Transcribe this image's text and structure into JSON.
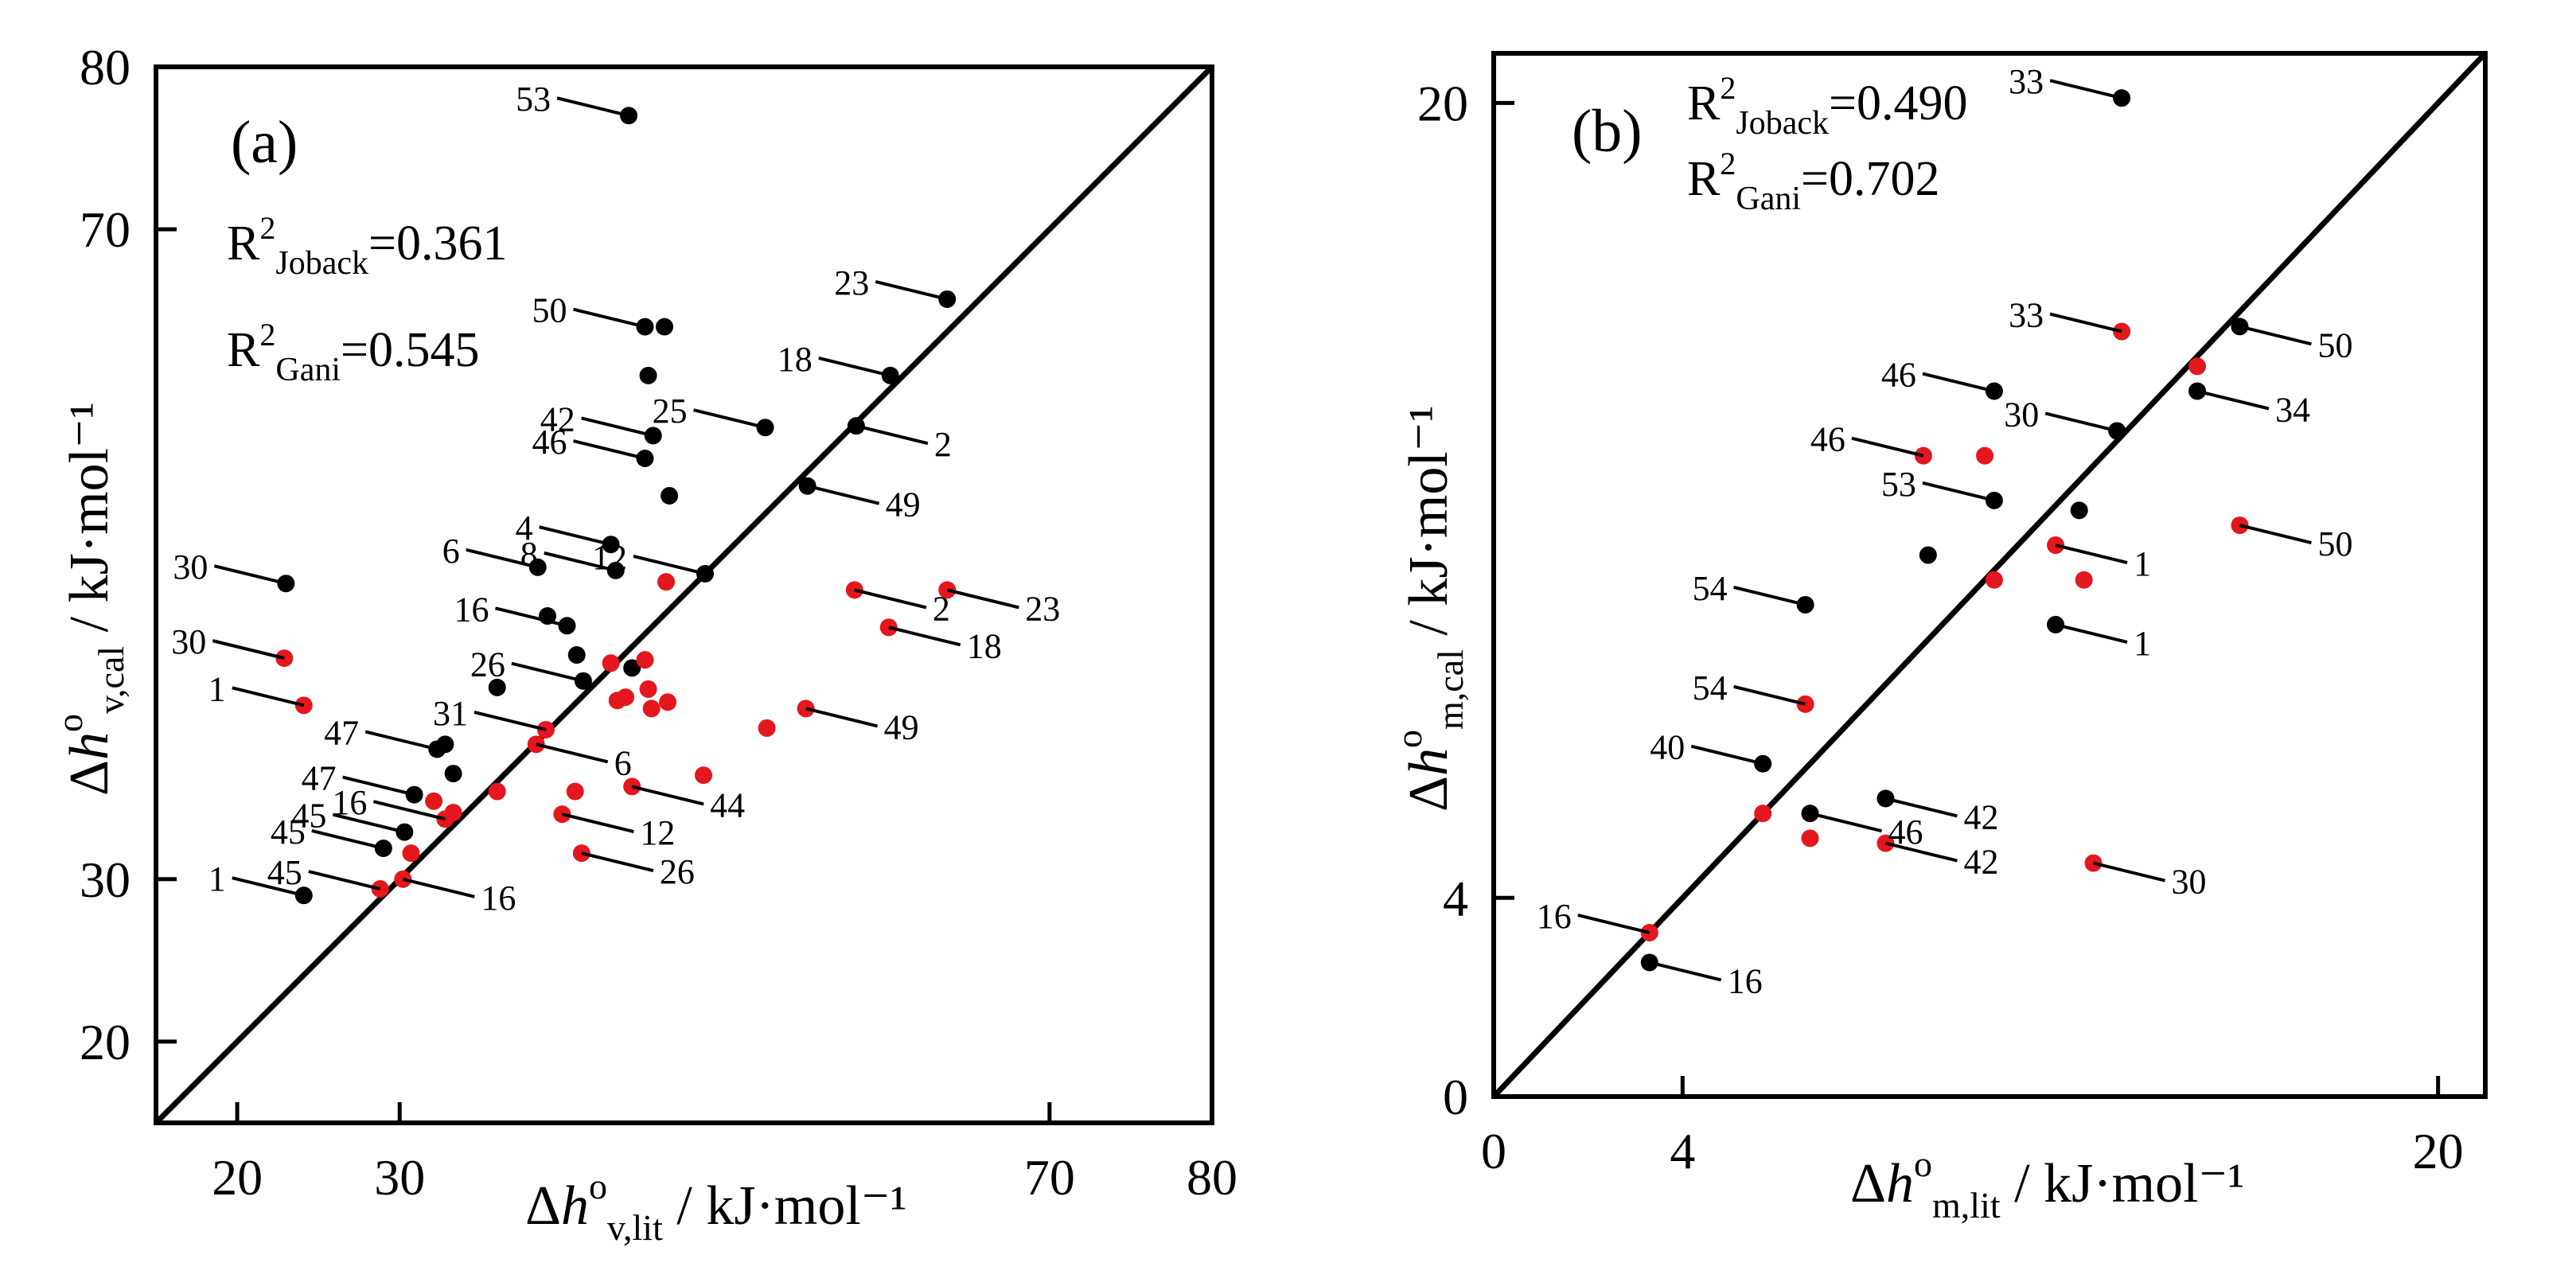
{
  "colors": {
    "series_joback": "#000000",
    "series_gani": "#e3171d",
    "frame": "#000000"
  },
  "chart_data": [
    {
      "type": "scatter",
      "panel_label": "(a)",
      "xlabel": {
        "delta": "Δ",
        "var": "h",
        "sup": "o",
        "sub": "v,lit",
        "unit": " / kJ·mol⁻¹"
      },
      "ylabel": {
        "delta": "Δ",
        "var": "h",
        "sup": "o",
        "sub": "v,cal",
        "unit": " / kJ·mol⁻¹"
      },
      "xlim": [
        15,
        80
      ],
      "ylim": [
        15,
        80
      ],
      "xticks": [
        20,
        30,
        70,
        80
      ],
      "yticks": [
        20,
        30,
        70,
        80
      ],
      "xtick_labels": [
        "20",
        "30",
        "70",
        "80"
      ],
      "ytick_labels": [
        "20",
        "30",
        "70",
        "80"
      ],
      "diagonal": true,
      "r2": [
        {
          "label": "R",
          "sup": "2",
          "sub": "Joback",
          "value": "=0.361"
        },
        {
          "label": "R",
          "sup": "2",
          "sub": "Gani",
          "value": "=0.545"
        }
      ],
      "series": [
        {
          "name": "Joback",
          "color": "#000000",
          "points": [
            {
              "x": 23.0,
              "y": 48.2,
              "label": "30"
            },
            {
              "x": 24.1,
              "y": 29.0,
              "label": "1"
            },
            {
              "x": 29.0,
              "y": 31.9,
              "label": "45"
            },
            {
              "x": 30.3,
              "y": 32.9,
              "label": "45"
            },
            {
              "x": 30.9,
              "y": 35.2,
              "label": "47"
            },
            {
              "x": 32.3,
              "y": 38.0,
              "label": "47"
            },
            {
              "x": 32.8,
              "y": 38.3,
              "label": ""
            },
            {
              "x": 33.3,
              "y": 36.5,
              "label": ""
            },
            {
              "x": 36.0,
              "y": 41.8,
              "label": ""
            },
            {
              "x": 38.5,
              "y": 49.2,
              "label": "6"
            },
            {
              "x": 39.1,
              "y": 46.2,
              "label": ""
            },
            {
              "x": 40.3,
              "y": 45.6,
              "label": "16"
            },
            {
              "x": 40.9,
              "y": 43.8,
              "label": ""
            },
            {
              "x": 41.3,
              "y": 42.2,
              "label": "26"
            },
            {
              "x": 43.0,
              "y": 50.6,
              "label": "4"
            },
            {
              "x": 43.3,
              "y": 49.0,
              "label": "8"
            },
            {
              "x": 44.3,
              "y": 43.0,
              "label": ""
            },
            {
              "x": 44.1,
              "y": 77.0,
              "label": "53"
            },
            {
              "x": 45.1,
              "y": 64.0,
              "label": "50"
            },
            {
              "x": 46.3,
              "y": 64.0,
              "label": ""
            },
            {
              "x": 45.3,
              "y": 61.0,
              "label": ""
            },
            {
              "x": 45.6,
              "y": 57.3,
              "label": "42"
            },
            {
              "x": 45.1,
              "y": 55.9,
              "label": "46"
            },
            {
              "x": 46.6,
              "y": 53.6,
              "label": ""
            },
            {
              "x": 48.8,
              "y": 48.8,
              "label": "12"
            },
            {
              "x": 52.5,
              "y": 57.8,
              "label": "25"
            },
            {
              "x": 55.1,
              "y": 54.2,
              "label": "49"
            },
            {
              "x": 58.1,
              "y": 57.9,
              "label": "2"
            },
            {
              "x": 60.2,
              "y": 61.0,
              "label": "18"
            },
            {
              "x": 63.7,
              "y": 65.7,
              "label": "23"
            }
          ]
        },
        {
          "name": "Gani",
          "color": "#e3171d",
          "points": [
            {
              "x": 22.9,
              "y": 43.6,
              "label": "30"
            },
            {
              "x": 24.1,
              "y": 40.7,
              "label": "1"
            },
            {
              "x": 28.8,
              "y": 29.4,
              "label": "45"
            },
            {
              "x": 30.2,
              "y": 30.0,
              "label": "16"
            },
            {
              "x": 30.7,
              "y": 31.6,
              "label": ""
            },
            {
              "x": 32.1,
              "y": 34.8,
              "label": ""
            },
            {
              "x": 32.8,
              "y": 33.7,
              "label": "16"
            },
            {
              "x": 33.3,
              "y": 34.1,
              "label": ""
            },
            {
              "x": 36.0,
              "y": 35.4,
              "label": ""
            },
            {
              "x": 38.4,
              "y": 38.3,
              "label": "6"
            },
            {
              "x": 39.0,
              "y": 39.2,
              "label": "31"
            },
            {
              "x": 40.0,
              "y": 34.0,
              "label": "12"
            },
            {
              "x": 40.8,
              "y": 35.4,
              "label": ""
            },
            {
              "x": 41.2,
              "y": 31.6,
              "label": "26"
            },
            {
              "x": 43.0,
              "y": 43.3,
              "label": ""
            },
            {
              "x": 43.4,
              "y": 41.0,
              "label": ""
            },
            {
              "x": 43.9,
              "y": 41.2,
              "label": ""
            },
            {
              "x": 44.3,
              "y": 35.7,
              "label": "44"
            },
            {
              "x": 45.1,
              "y": 43.5,
              "label": ""
            },
            {
              "x": 45.3,
              "y": 41.7,
              "label": ""
            },
            {
              "x": 45.5,
              "y": 40.5,
              "label": ""
            },
            {
              "x": 46.5,
              "y": 40.9,
              "label": ""
            },
            {
              "x": 46.4,
              "y": 48.3,
              "label": ""
            },
            {
              "x": 48.7,
              "y": 36.4,
              "label": ""
            },
            {
              "x": 52.6,
              "y": 39.3,
              "label": ""
            },
            {
              "x": 55.0,
              "y": 40.5,
              "label": "49"
            },
            {
              "x": 58.0,
              "y": 47.8,
              "label": "2"
            },
            {
              "x": 60.1,
              "y": 45.5,
              "label": "18"
            },
            {
              "x": 63.7,
              "y": 47.8,
              "label": "23"
            }
          ]
        }
      ]
    },
    {
      "type": "scatter",
      "panel_label": "(b)",
      "xlabel": {
        "delta": "Δ",
        "var": "h",
        "sup": "o",
        "sub": "m,lit",
        "unit": " / kJ·mol⁻¹"
      },
      "ylabel": {
        "delta": "Δ",
        "var": "h",
        "sup": "o",
        "sub": "m,cal",
        "unit": " / kJ·mol⁻¹"
      },
      "xlim": [
        0,
        21
      ],
      "ylim": [
        0,
        21
      ],
      "xticks": [
        0,
        4,
        20
      ],
      "yticks": [
        0,
        4,
        20
      ],
      "xtick_labels": [
        "0",
        "4",
        "20"
      ],
      "ytick_labels": [
        "0",
        "4",
        "20"
      ],
      "diagonal": true,
      "r2": [
        {
          "label": "R",
          "sup": "2",
          "sub": "Joback",
          "value": "=0.490"
        },
        {
          "label": "R",
          "sup": "2",
          "sub": "Gani",
          "value": "=0.702"
        }
      ],
      "series": [
        {
          "name": "Joback",
          "color": "#000000",
          "points": [
            {
              "x": 3.3,
              "y": 2.7,
              "label": "16"
            },
            {
              "x": 5.7,
              "y": 6.7,
              "label": "40"
            },
            {
              "x": 6.7,
              "y": 5.7,
              "label": "46"
            },
            {
              "x": 6.6,
              "y": 9.9,
              "label": "54"
            },
            {
              "x": 8.3,
              "y": 6.0,
              "label": "42"
            },
            {
              "x": 9.2,
              "y": 10.9,
              "label": ""
            },
            {
              "x": 10.6,
              "y": 14.2,
              "label": "46"
            },
            {
              "x": 10.6,
              "y": 12.0,
              "label": "53"
            },
            {
              "x": 11.9,
              "y": 9.5,
              "label": "1"
            },
            {
              "x": 12.4,
              "y": 11.8,
              "label": ""
            },
            {
              "x": 13.2,
              "y": 13.4,
              "label": "30"
            },
            {
              "x": 13.3,
              "y": 20.1,
              "label": "33"
            },
            {
              "x": 14.9,
              "y": 14.2,
              "label": "34"
            },
            {
              "x": 15.8,
              "y": 15.5,
              "label": "50"
            }
          ]
        },
        {
          "name": "Gani",
          "color": "#e3171d",
          "points": [
            {
              "x": 3.3,
              "y": 3.3,
              "label": "16"
            },
            {
              "x": 5.7,
              "y": 5.7,
              "label": ""
            },
            {
              "x": 6.7,
              "y": 5.2,
              "label": ""
            },
            {
              "x": 6.6,
              "y": 7.9,
              "label": "54"
            },
            {
              "x": 8.3,
              "y": 5.1,
              "label": "42"
            },
            {
              "x": 9.1,
              "y": 12.9,
              "label": "46"
            },
            {
              "x": 10.4,
              "y": 12.9,
              "label": ""
            },
            {
              "x": 10.6,
              "y": 10.4,
              "label": ""
            },
            {
              "x": 11.9,
              "y": 11.1,
              "label": "1"
            },
            {
              "x": 12.5,
              "y": 10.4,
              "label": ""
            },
            {
              "x": 12.7,
              "y": 4.7,
              "label": "30"
            },
            {
              "x": 13.3,
              "y": 15.4,
              "label": "33"
            },
            {
              "x": 14.9,
              "y": 14.7,
              "label": ""
            },
            {
              "x": 15.8,
              "y": 11.5,
              "label": "50"
            }
          ]
        }
      ]
    }
  ]
}
